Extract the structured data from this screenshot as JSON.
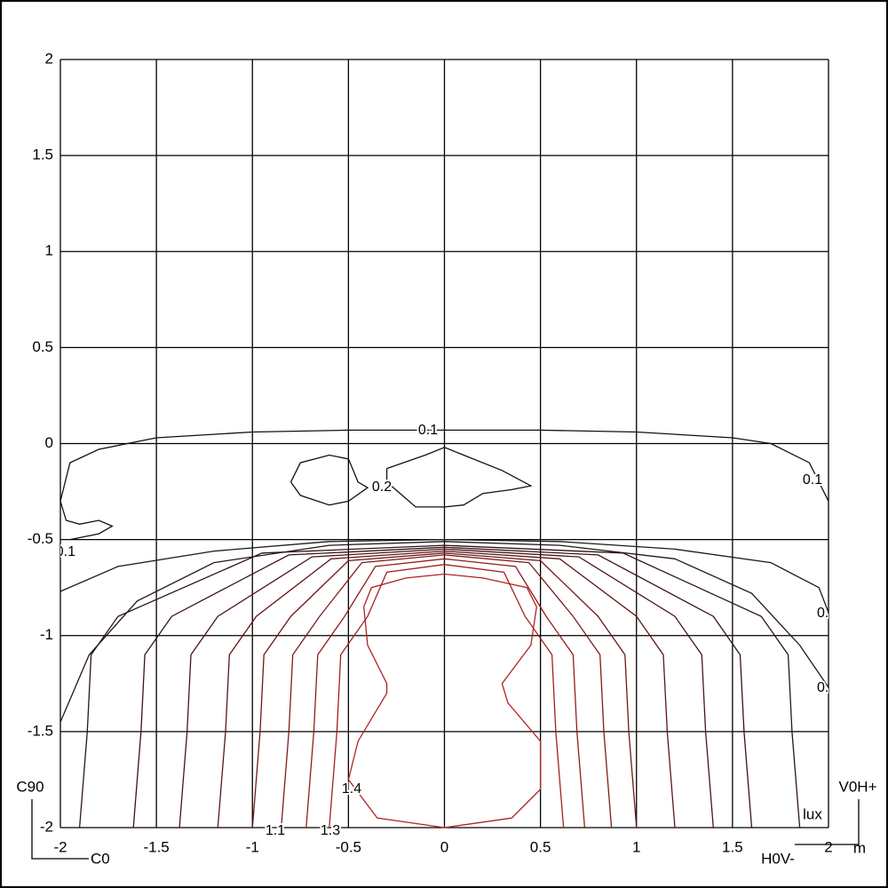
{
  "chart_data": {
    "type": "contour",
    "xlim": [
      -2,
      2
    ],
    "ylim": [
      -2,
      2
    ],
    "xticks": [
      -2,
      -1.5,
      -1,
      -0.5,
      0,
      0.5,
      1,
      1.5,
      2
    ],
    "yticks": [
      -2,
      -1.5,
      -1,
      -0.5,
      0,
      0.5,
      1,
      1.5,
      2
    ],
    "grid": true,
    "unit": "lux",
    "x_unit": "m",
    "corner_labels": {
      "top_left": "C90",
      "bottom_left": "C0",
      "top_right": "V0H+",
      "bottom_right": "H0V-"
    },
    "contours": [
      {
        "label": "0.1",
        "color": "#111111",
        "x": [
          -1.95,
          -1.8,
          -1.73,
          -1.8,
          -1.9,
          -1.97,
          -2.0,
          -1.95,
          -1.8,
          -1.5,
          -1.0,
          -0.5,
          0,
          0.5,
          1.0,
          1.5,
          1.7,
          1.9,
          2.0
        ],
        "y": [
          -0.5,
          -0.47,
          -0.43,
          -0.4,
          -0.42,
          -0.4,
          -0.3,
          -0.1,
          -0.03,
          0.03,
          0.06,
          0.07,
          0.07,
          0.07,
          0.06,
          0.03,
          0.0,
          -0.1,
          -0.3
        ]
      },
      {
        "label": "0.2",
        "color": "#111111",
        "x": [
          -0.8,
          -0.75,
          -0.6,
          -0.5,
          -0.45,
          -0.4,
          -0.5,
          -0.6,
          -0.75,
          -0.8
        ],
        "y": [
          -0.2,
          -0.1,
          -0.06,
          -0.08,
          -0.2,
          -0.23,
          -0.3,
          -0.32,
          -0.27,
          -0.2
        ]
      },
      {
        "color": "#111111",
        "x": [
          -0.3,
          -0.1,
          0,
          0.1,
          0.3,
          0.45,
          0.35,
          0.2,
          0.1,
          0,
          -0.15,
          -0.3,
          -0.3
        ],
        "y": [
          -0.13,
          -0.06,
          -0.02,
          -0.06,
          -0.14,
          -0.22,
          -0.24,
          -0.26,
          -0.32,
          -0.33,
          -0.33,
          -0.2,
          -0.13
        ]
      },
      {
        "label": "0.",
        "color": "#1a1a1a",
        "x": [
          -2,
          -1.7,
          -1.2,
          -0.6,
          0,
          0.6,
          1.2,
          1.7,
          1.95,
          2
        ],
        "y": [
          -0.77,
          -0.64,
          -0.56,
          -0.51,
          -0.5,
          -0.51,
          -0.55,
          -0.62,
          -0.75,
          -0.88
        ]
      },
      {
        "label": "0.",
        "color": "#221616",
        "x": [
          -2,
          -1.85,
          -1.6,
          -1.2,
          -0.6,
          0,
          0.6,
          1.2,
          1.6,
          1.85,
          2
        ],
        "y": [
          -1.45,
          -1.1,
          -0.82,
          -0.62,
          -0.53,
          -0.51,
          -0.53,
          -0.6,
          -0.78,
          -1.05,
          -1.27
        ]
      },
      {
        "color": "#2e1414",
        "x": [
          -1.9,
          -1.86,
          -1.84,
          -1.7,
          -0.95,
          0,
          0.93,
          1.65,
          1.79,
          1.81,
          1.85
        ],
        "y": [
          -2,
          -1.5,
          -1.1,
          -0.9,
          -0.57,
          -0.53,
          -0.57,
          -0.9,
          -1.1,
          -1.5,
          -2
        ]
      },
      {
        "color": "#3a1414",
        "x": [
          -1.62,
          -1.58,
          -1.56,
          -1.42,
          -0.81,
          0,
          0.8,
          1.4,
          1.54,
          1.56,
          1.6
        ],
        "y": [
          -2,
          -1.5,
          -1.1,
          -0.9,
          -0.58,
          -0.54,
          -0.58,
          -0.9,
          -1.1,
          -1.5,
          -2
        ]
      },
      {
        "color": "#4a1515",
        "x": [
          -1.38,
          -1.34,
          -1.32,
          -1.18,
          -0.69,
          0,
          0.7,
          1.2,
          1.34,
          1.36,
          1.4
        ],
        "y": [
          -2,
          -1.5,
          -1.1,
          -0.9,
          -0.59,
          -0.55,
          -0.59,
          -0.9,
          -1.1,
          -1.5,
          -2
        ]
      },
      {
        "color": "#5c1717",
        "x": [
          -1.18,
          -1.14,
          -1.12,
          -0.98,
          -0.59,
          0,
          0.6,
          1.0,
          1.14,
          1.16,
          1.2
        ],
        "y": [
          -2,
          -1.5,
          -1.1,
          -0.9,
          -0.6,
          -0.56,
          -0.6,
          -0.9,
          -1.1,
          -1.5,
          -2
        ]
      },
      {
        "color": "#6e1919",
        "x": [
          -1.0,
          -0.96,
          -0.94,
          -0.8,
          -0.5,
          0,
          0.5,
          0.8,
          0.94,
          0.96,
          1.0
        ],
        "y": [
          -2,
          -1.5,
          -1.1,
          -0.9,
          -0.61,
          -0.57,
          -0.61,
          -0.9,
          -1.1,
          -1.5,
          -2
        ]
      },
      {
        "label": "1.1",
        "color": "#801b1b",
        "x": [
          -0.85,
          -0.81,
          -0.79,
          -0.65,
          -0.43,
          0,
          0.44,
          0.67,
          0.81,
          0.83,
          0.87
        ],
        "y": [
          -2,
          -1.5,
          -1.1,
          -0.9,
          -0.62,
          -0.58,
          -0.62,
          -0.9,
          -1.1,
          -1.5,
          -2
        ]
      },
      {
        "color": "#921d1d",
        "x": [
          -0.72,
          -0.68,
          -0.66,
          -0.52,
          -0.36,
          0,
          0.37,
          0.53,
          0.67,
          0.69,
          0.73
        ],
        "y": [
          -2,
          -1.5,
          -1.1,
          -0.9,
          -0.64,
          -0.6,
          -0.64,
          -0.9,
          -1.1,
          -1.5,
          -2
        ]
      },
      {
        "label": "1.3",
        "color": "#a41f1f",
        "x": [
          -0.6,
          -0.56,
          -0.54,
          -0.4,
          -0.3,
          0,
          0.31,
          0.42,
          0.56,
          0.58,
          0.62
        ],
        "y": [
          -2,
          -1.5,
          -1.1,
          -0.9,
          -0.67,
          -0.63,
          -0.67,
          -0.9,
          -1.1,
          -1.5,
          -2
        ]
      },
      {
        "label": "1.4",
        "color": "#b22222",
        "x": [
          -0.5,
          -0.45,
          -0.3,
          -0.3,
          -0.4,
          -0.42,
          -0.38,
          -0.2,
          0,
          0.2,
          0.43,
          0.48,
          0.45,
          0.3,
          0.33,
          0.5,
          0.5,
          0.35,
          0,
          -0.35,
          -0.5
        ],
        "y": [
          -1.75,
          -1.55,
          -1.3,
          -1.25,
          -1.05,
          -0.85,
          -0.75,
          -0.7,
          -0.68,
          -0.7,
          -0.75,
          -0.85,
          -1.05,
          -1.25,
          -1.35,
          -1.55,
          -1.8,
          -1.95,
          -2,
          -1.95,
          -1.75
        ]
      }
    ]
  }
}
